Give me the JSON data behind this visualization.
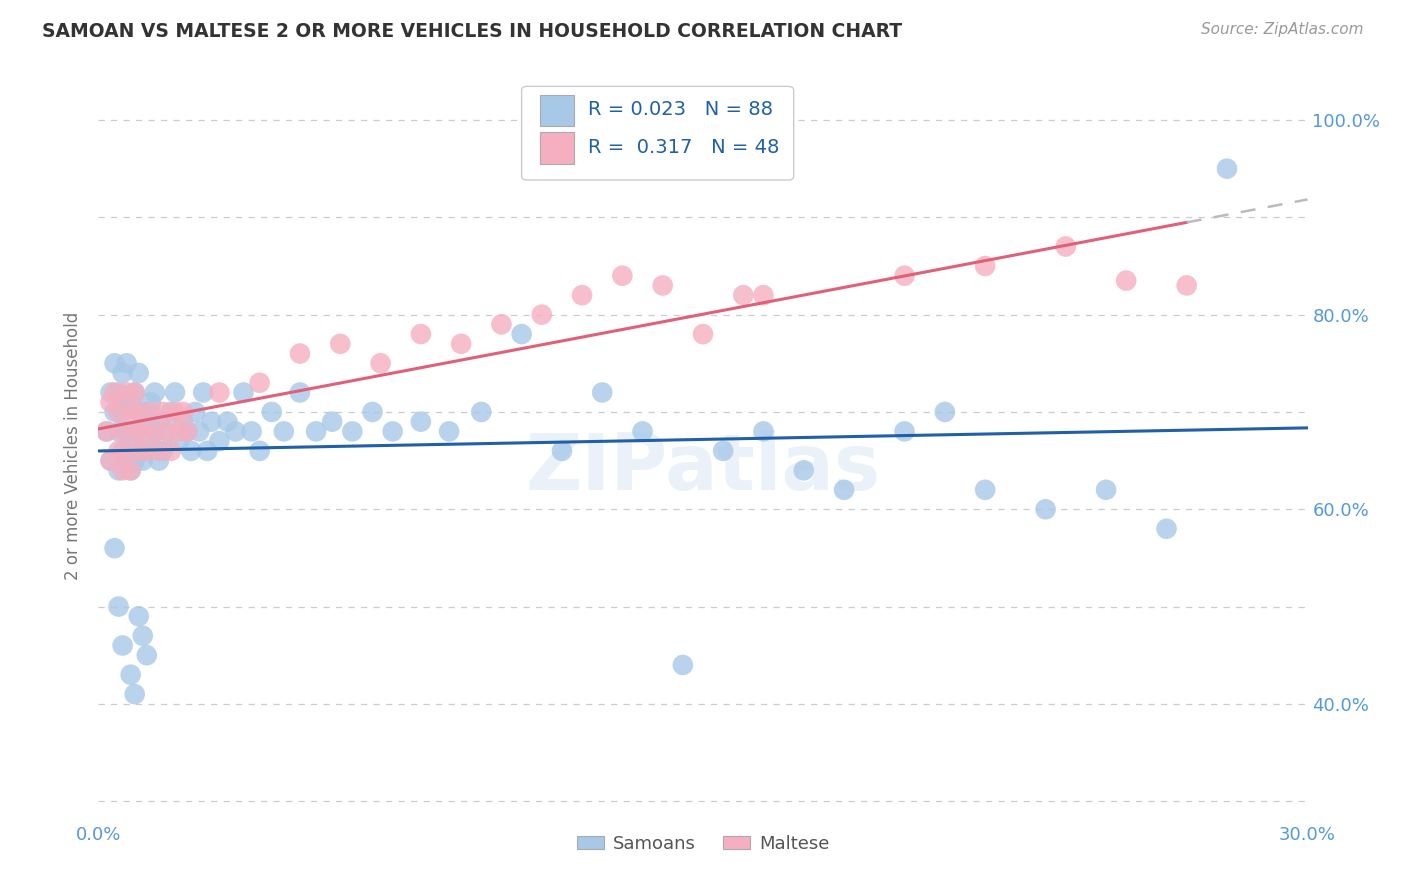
{
  "title": "SAMOAN VS MALTESE 2 OR MORE VEHICLES IN HOUSEHOLD CORRELATION CHART",
  "source": "Source: ZipAtlas.com",
  "ylabel": "2 or more Vehicles in Household",
  "xlim": [
    0.0,
    0.3
  ],
  "ylim": [
    0.28,
    1.05
  ],
  "x_tick_pos": [
    0.0,
    0.05,
    0.1,
    0.15,
    0.2,
    0.25,
    0.3
  ],
  "x_tick_labels": [
    "0.0%",
    "",
    "",
    "",
    "",
    "",
    "30.0%"
  ],
  "y_tick_pos": [
    0.3,
    0.4,
    0.5,
    0.6,
    0.7,
    0.8,
    0.9,
    1.0
  ],
  "y_tick_labels": [
    "",
    "40.0%",
    "",
    "60.0%",
    "",
    "80.0%",
    "",
    "100.0%"
  ],
  "samoans_color": "#a8c8e8",
  "maltese_color": "#f5afc0",
  "samoans_line_color": "#2060a8",
  "maltese_line_color": "#e0607a",
  "legend_R_samoans": "0.023",
  "legend_N_samoans": "88",
  "legend_R_maltese": "0.317",
  "legend_N_maltese": "48",
  "watermark": "ZIPatlas",
  "background_color": "#ffffff",
  "grid_color": "#cccccc",
  "tick_label_color": "#5599dd",
  "ylabel_color": "#777777",
  "title_color": "#333333",
  "source_color": "#999999"
}
